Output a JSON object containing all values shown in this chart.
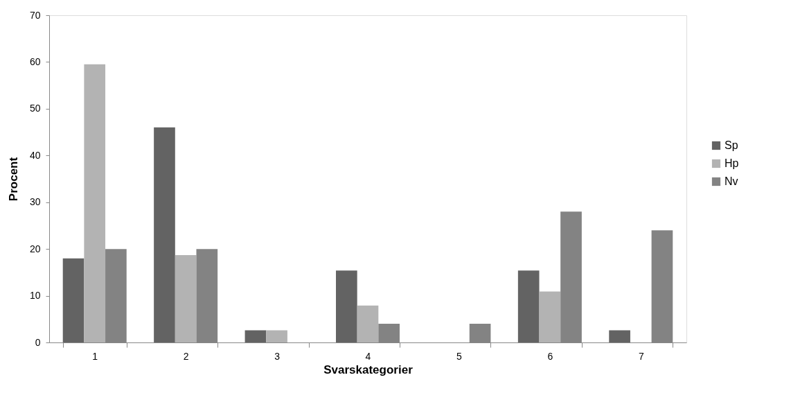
{
  "chart_data": {
    "type": "bar",
    "xlabel": "Svarskategorier",
    "ylabel": "Procent",
    "categories": [
      "1",
      "2",
      "3",
      "4",
      "5",
      "6",
      "7"
    ],
    "series": [
      {
        "name": "Sp",
        "color": "#636363",
        "values": [
          18,
          46,
          2.6,
          15.4,
          0,
          15.4,
          2.6
        ]
      },
      {
        "name": "Hp",
        "color": "#b3b3b3",
        "values": [
          59.5,
          18.7,
          2.6,
          7.9,
          0,
          10.9,
          0
        ]
      },
      {
        "name": "Nv",
        "color": "#838383",
        "values": [
          20,
          20,
          0,
          4,
          4,
          28,
          24
        ]
      }
    ],
    "ylim": [
      0,
      70
    ],
    "yticks": [
      0,
      10,
      20,
      30,
      40,
      50,
      60,
      70
    ],
    "grid": false,
    "legend": "right"
  }
}
